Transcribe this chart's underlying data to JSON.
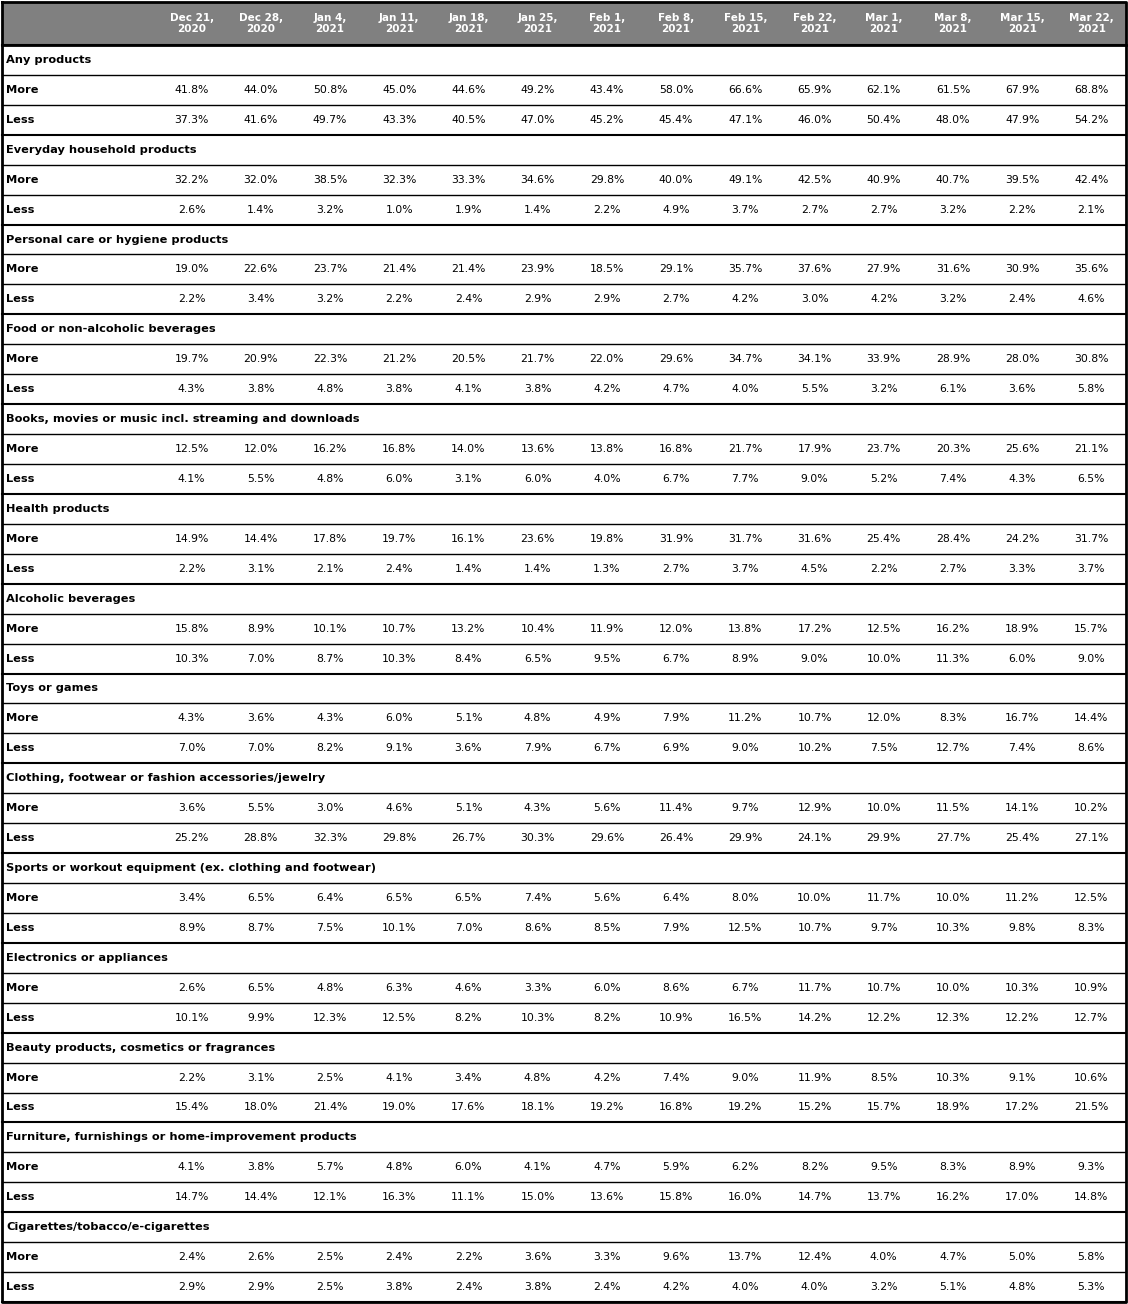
{
  "col_headers": [
    "Dec 21,\n2020",
    "Dec 28,\n2020",
    "Jan 4,\n2021",
    "Jan 11,\n2021",
    "Jan 18,\n2021",
    "Jan 25,\n2021",
    "Feb 1,\n2021",
    "Feb 8,\n2021",
    "Feb 15,\n2021",
    "Feb 22,\n2021",
    "Mar 1,\n2021",
    "Mar 8,\n2021",
    "Mar 15,\n2021",
    "Mar 22,\n2021"
  ],
  "categories": [
    {
      "name": "Any products",
      "rows": [
        {
          "label": "More",
          "values": [
            "41.8%",
            "44.0%",
            "50.8%",
            "45.0%",
            "44.6%",
            "49.2%",
            "43.4%",
            "58.0%",
            "66.6%",
            "65.9%",
            "62.1%",
            "61.5%",
            "67.9%",
            "68.8%"
          ]
        },
        {
          "label": "Less",
          "values": [
            "37.3%",
            "41.6%",
            "49.7%",
            "43.3%",
            "40.5%",
            "47.0%",
            "45.2%",
            "45.4%",
            "47.1%",
            "46.0%",
            "50.4%",
            "48.0%",
            "47.9%",
            "54.2%"
          ]
        }
      ]
    },
    {
      "name": "Everyday household products",
      "rows": [
        {
          "label": "More",
          "values": [
            "32.2%",
            "32.0%",
            "38.5%",
            "32.3%",
            "33.3%",
            "34.6%",
            "29.8%",
            "40.0%",
            "49.1%",
            "42.5%",
            "40.9%",
            "40.7%",
            "39.5%",
            "42.4%"
          ]
        },
        {
          "label": "Less",
          "values": [
            "2.6%",
            "1.4%",
            "3.2%",
            "1.0%",
            "1.9%",
            "1.4%",
            "2.2%",
            "4.9%",
            "3.7%",
            "2.7%",
            "2.7%",
            "3.2%",
            "2.2%",
            "2.1%"
          ]
        }
      ]
    },
    {
      "name": "Personal care or hygiene products",
      "rows": [
        {
          "label": "More",
          "values": [
            "19.0%",
            "22.6%",
            "23.7%",
            "21.4%",
            "21.4%",
            "23.9%",
            "18.5%",
            "29.1%",
            "35.7%",
            "37.6%",
            "27.9%",
            "31.6%",
            "30.9%",
            "35.6%"
          ]
        },
        {
          "label": "Less",
          "values": [
            "2.2%",
            "3.4%",
            "3.2%",
            "2.2%",
            "2.4%",
            "2.9%",
            "2.9%",
            "2.7%",
            "4.2%",
            "3.0%",
            "4.2%",
            "3.2%",
            "2.4%",
            "4.6%"
          ]
        }
      ]
    },
    {
      "name": "Food or non-alcoholic beverages",
      "rows": [
        {
          "label": "More",
          "values": [
            "19.7%",
            "20.9%",
            "22.3%",
            "21.2%",
            "20.5%",
            "21.7%",
            "22.0%",
            "29.6%",
            "34.7%",
            "34.1%",
            "33.9%",
            "28.9%",
            "28.0%",
            "30.8%"
          ]
        },
        {
          "label": "Less",
          "values": [
            "4.3%",
            "3.8%",
            "4.8%",
            "3.8%",
            "4.1%",
            "3.8%",
            "4.2%",
            "4.7%",
            "4.0%",
            "5.5%",
            "3.2%",
            "6.1%",
            "3.6%",
            "5.8%"
          ]
        }
      ]
    },
    {
      "name": "Books, movies or music incl. streaming and downloads",
      "rows": [
        {
          "label": "More",
          "values": [
            "12.5%",
            "12.0%",
            "16.2%",
            "16.8%",
            "14.0%",
            "13.6%",
            "13.8%",
            "16.8%",
            "21.7%",
            "17.9%",
            "23.7%",
            "20.3%",
            "25.6%",
            "21.1%"
          ]
        },
        {
          "label": "Less",
          "values": [
            "4.1%",
            "5.5%",
            "4.8%",
            "6.0%",
            "3.1%",
            "6.0%",
            "4.0%",
            "6.7%",
            "7.7%",
            "9.0%",
            "5.2%",
            "7.4%",
            "4.3%",
            "6.5%"
          ]
        }
      ]
    },
    {
      "name": "Health products",
      "rows": [
        {
          "label": "More",
          "values": [
            "14.9%",
            "14.4%",
            "17.8%",
            "19.7%",
            "16.1%",
            "23.6%",
            "19.8%",
            "31.9%",
            "31.7%",
            "31.6%",
            "25.4%",
            "28.4%",
            "24.2%",
            "31.7%"
          ]
        },
        {
          "label": "Less",
          "values": [
            "2.2%",
            "3.1%",
            "2.1%",
            "2.4%",
            "1.4%",
            "1.4%",
            "1.3%",
            "2.7%",
            "3.7%",
            "4.5%",
            "2.2%",
            "2.7%",
            "3.3%",
            "3.7%"
          ]
        }
      ]
    },
    {
      "name": "Alcoholic beverages",
      "rows": [
        {
          "label": "More",
          "values": [
            "15.8%",
            "8.9%",
            "10.1%",
            "10.7%",
            "13.2%",
            "10.4%",
            "11.9%",
            "12.0%",
            "13.8%",
            "17.2%",
            "12.5%",
            "16.2%",
            "18.9%",
            "15.7%"
          ]
        },
        {
          "label": "Less",
          "values": [
            "10.3%",
            "7.0%",
            "8.7%",
            "10.3%",
            "8.4%",
            "6.5%",
            "9.5%",
            "6.7%",
            "8.9%",
            "9.0%",
            "10.0%",
            "11.3%",
            "6.0%",
            "9.0%"
          ]
        }
      ]
    },
    {
      "name": "Toys or games",
      "rows": [
        {
          "label": "More",
          "values": [
            "4.3%",
            "3.6%",
            "4.3%",
            "6.0%",
            "5.1%",
            "4.8%",
            "4.9%",
            "7.9%",
            "11.2%",
            "10.7%",
            "12.0%",
            "8.3%",
            "16.7%",
            "14.4%"
          ]
        },
        {
          "label": "Less",
          "values": [
            "7.0%",
            "7.0%",
            "8.2%",
            "9.1%",
            "3.6%",
            "7.9%",
            "6.7%",
            "6.9%",
            "9.0%",
            "10.2%",
            "7.5%",
            "12.7%",
            "7.4%",
            "8.6%"
          ]
        }
      ]
    },
    {
      "name": "Clothing, footwear or fashion accessories/jewelry",
      "rows": [
        {
          "label": "More",
          "values": [
            "3.6%",
            "5.5%",
            "3.0%",
            "4.6%",
            "5.1%",
            "4.3%",
            "5.6%",
            "11.4%",
            "9.7%",
            "12.9%",
            "10.0%",
            "11.5%",
            "14.1%",
            "10.2%"
          ]
        },
        {
          "label": "Less",
          "values": [
            "25.2%",
            "28.8%",
            "32.3%",
            "29.8%",
            "26.7%",
            "30.3%",
            "29.6%",
            "26.4%",
            "29.9%",
            "24.1%",
            "29.9%",
            "27.7%",
            "25.4%",
            "27.1%"
          ]
        }
      ]
    },
    {
      "name": "Sports or workout equipment (ex. clothing and footwear)",
      "rows": [
        {
          "label": "More",
          "values": [
            "3.4%",
            "6.5%",
            "6.4%",
            "6.5%",
            "6.5%",
            "7.4%",
            "5.6%",
            "6.4%",
            "8.0%",
            "10.0%",
            "11.7%",
            "10.0%",
            "11.2%",
            "12.5%"
          ]
        },
        {
          "label": "Less",
          "values": [
            "8.9%",
            "8.7%",
            "7.5%",
            "10.1%",
            "7.0%",
            "8.6%",
            "8.5%",
            "7.9%",
            "12.5%",
            "10.7%",
            "9.7%",
            "10.3%",
            "9.8%",
            "8.3%"
          ]
        }
      ]
    },
    {
      "name": "Electronics or appliances",
      "rows": [
        {
          "label": "More",
          "values": [
            "2.6%",
            "6.5%",
            "4.8%",
            "6.3%",
            "4.6%",
            "3.3%",
            "6.0%",
            "8.6%",
            "6.7%",
            "11.7%",
            "10.7%",
            "10.0%",
            "10.3%",
            "10.9%"
          ]
        },
        {
          "label": "Less",
          "values": [
            "10.1%",
            "9.9%",
            "12.3%",
            "12.5%",
            "8.2%",
            "10.3%",
            "8.2%",
            "10.9%",
            "16.5%",
            "14.2%",
            "12.2%",
            "12.3%",
            "12.2%",
            "12.7%"
          ]
        }
      ]
    },
    {
      "name": "Beauty products, cosmetics or fragrances",
      "rows": [
        {
          "label": "More",
          "values": [
            "2.2%",
            "3.1%",
            "2.5%",
            "4.1%",
            "3.4%",
            "4.8%",
            "4.2%",
            "7.4%",
            "9.0%",
            "11.9%",
            "8.5%",
            "10.3%",
            "9.1%",
            "10.6%"
          ]
        },
        {
          "label": "Less",
          "values": [
            "15.4%",
            "18.0%",
            "21.4%",
            "19.0%",
            "17.6%",
            "18.1%",
            "19.2%",
            "16.8%",
            "19.2%",
            "15.2%",
            "15.7%",
            "18.9%",
            "17.2%",
            "21.5%"
          ]
        }
      ]
    },
    {
      "name": "Furniture, furnishings or home-improvement products",
      "rows": [
        {
          "label": "More",
          "values": [
            "4.1%",
            "3.8%",
            "5.7%",
            "4.8%",
            "6.0%",
            "4.1%",
            "4.7%",
            "5.9%",
            "6.2%",
            "8.2%",
            "9.5%",
            "8.3%",
            "8.9%",
            "9.3%"
          ]
        },
        {
          "label": "Less",
          "values": [
            "14.7%",
            "14.4%",
            "12.1%",
            "16.3%",
            "11.1%",
            "15.0%",
            "13.6%",
            "15.8%",
            "16.0%",
            "14.7%",
            "13.7%",
            "16.2%",
            "17.0%",
            "14.8%"
          ]
        }
      ]
    },
    {
      "name": "Cigarettes/tobacco/e-cigarettes",
      "rows": [
        {
          "label": "More",
          "values": [
            "2.4%",
            "2.6%",
            "2.5%",
            "2.4%",
            "2.2%",
            "3.6%",
            "3.3%",
            "9.6%",
            "13.7%",
            "12.4%",
            "4.0%",
            "4.7%",
            "5.0%",
            "5.8%"
          ]
        },
        {
          "label": "Less",
          "values": [
            "2.9%",
            "2.9%",
            "2.5%",
            "3.8%",
            "2.4%",
            "3.8%",
            "2.4%",
            "4.2%",
            "4.0%",
            "4.0%",
            "3.2%",
            "5.1%",
            "4.8%",
            "5.3%"
          ]
        }
      ]
    }
  ],
  "header_bg_color": "#808080",
  "header_text_color": "#ffffff",
  "row_bg_color": "#ffffff",
  "row_text_color": "#000000"
}
